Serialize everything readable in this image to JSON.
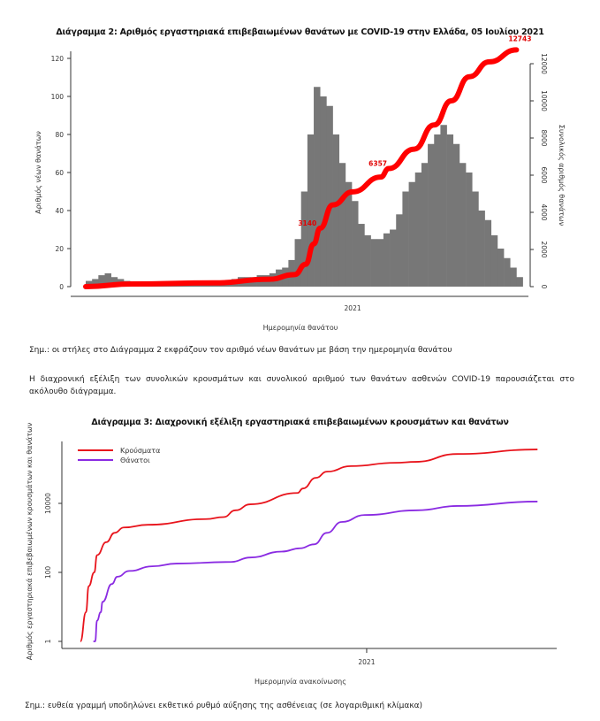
{
  "chart_data": [
    {
      "type": "bar",
      "title": "Διάγραμμα 2: Αριθμός εργαστηριακά επιβεβαιωμένων θανάτων με COVID-19 στην Ελλάδα, 05 Ιουλίου 2021",
      "xlabel": "Ημερομηνία θανάτου",
      "ylabel": "Αριθμός νέων θανάτων",
      "y2label": "Συνολικός αριθμός θανάτων",
      "x_tick_labels": [
        "2021"
      ],
      "x_ticks": [
        "2021-01-01"
      ],
      "y_ticks": [
        0,
        20,
        40,
        60,
        80,
        100,
        120
      ],
      "y2_ticks": [
        0,
        2000,
        4000,
        6000,
        8000,
        10000,
        12000
      ],
      "ylim": [
        0,
        120
      ],
      "y2lim": [
        0,
        12000
      ],
      "grid": false,
      "bar_color": "#777777",
      "line_color": "#ff0000",
      "bars": {
        "resolution": "weekly average of daily new deaths",
        "week_starts_from": "2020-03-12",
        "values": [
          3,
          4,
          6,
          7,
          5,
          4,
          3,
          2,
          2,
          1,
          1,
          1,
          1,
          1,
          1,
          1,
          1,
          1,
          1,
          1,
          2,
          2,
          3,
          4,
          5,
          5,
          5,
          6,
          6,
          7,
          9,
          10,
          14,
          25,
          50,
          80,
          105,
          100,
          95,
          80,
          65,
          55,
          45,
          33,
          27,
          25,
          25,
          28,
          30,
          38,
          50,
          55,
          60,
          65,
          75,
          80,
          85,
          80,
          75,
          65,
          60,
          50,
          40,
          35,
          27,
          20,
          15,
          10,
          5
        ]
      },
      "cumulative": [
        {
          "date": "2020-03-12",
          "value": 0
        },
        {
          "date": "2020-05-01",
          "value": 140
        },
        {
          "date": "2020-08-01",
          "value": 200
        },
        {
          "date": "2020-10-01",
          "value": 400
        },
        {
          "date": "2020-10-29",
          "value": 650
        },
        {
          "date": "2020-11-10",
          "value": 1200
        },
        {
          "date": "2020-11-19",
          "value": 2300
        },
        {
          "date": "2020-11-26",
          "value": 3140
        },
        {
          "date": "2020-12-10",
          "value": 4400
        },
        {
          "date": "2021-01-01",
          "value": 5100
        },
        {
          "date": "2021-02-01",
          "value": 5900
        },
        {
          "date": "2021-02-10",
          "value": 6357
        },
        {
          "date": "2021-03-10",
          "value": 7400
        },
        {
          "date": "2021-04-01",
          "value": 8700
        },
        {
          "date": "2021-04-20",
          "value": 10000
        },
        {
          "date": "2021-05-10",
          "value": 11300
        },
        {
          "date": "2021-06-01",
          "value": 12100
        },
        {
          "date": "2021-07-01",
          "value": 12743
        }
      ],
      "annotations": [
        {
          "date": "2020-11-26",
          "value": 3140,
          "label": "3140"
        },
        {
          "date": "2021-02-10",
          "value": 6357,
          "label": "6357"
        },
        {
          "date": "2021-07-01",
          "value": 12743,
          "label": "12743"
        }
      ]
    },
    {
      "type": "line",
      "title": "Διάγραμμα 3: Διαχρονική εξέλιξη εργαστηριακά επιβεβαιωμένων κρουσμάτων και θανάτων",
      "xlabel": "Ημερομηνία ανακοίνωσης",
      "ylabel": "Αριθμός εργαστηριακά επιβεβαιωμένων κρουσμάτων και θανάτων",
      "y_scale": "log",
      "y_ticks": [
        1,
        100,
        10000
      ],
      "x_ticks": [
        "2021-01-01"
      ],
      "x_tick_labels": [
        "2021"
      ],
      "grid": false,
      "legend_position": "top-left",
      "series": [
        {
          "name": "Κρούσματα",
          "color": "#e8141c",
          "points": [
            [
              "2020-02-26",
              1
            ],
            [
              "2020-03-03",
              7
            ],
            [
              "2020-03-06",
              40
            ],
            [
              "2020-03-12",
              100
            ],
            [
              "2020-03-15",
              316
            ],
            [
              "2020-03-25",
              750
            ],
            [
              "2020-04-03",
              1400
            ],
            [
              "2020-04-13",
              2000
            ],
            [
              "2020-05-09",
              2400
            ],
            [
              "2020-07-11",
              3500
            ],
            [
              "2020-07-30",
              4000
            ],
            [
              "2020-08-12",
              6300
            ],
            [
              "2020-08-28",
              9400
            ],
            [
              "2020-10-18",
              20000
            ],
            [
              "2020-10-24",
              27000
            ],
            [
              "2020-11-07",
              55000
            ],
            [
              "2020-11-19",
              83000
            ],
            [
              "2020-12-15",
              120000
            ],
            [
              "2021-02-01",
              150000
            ],
            [
              "2021-02-23",
              160000
            ],
            [
              "2021-04-09",
              270000
            ],
            [
              "2021-07-05",
              365000
            ]
          ]
        },
        {
          "name": "Θάνατοι",
          "color": "#8a2be2",
          "points": [
            [
              "2020-03-11",
              1
            ],
            [
              "2020-03-13",
              1
            ],
            [
              "2020-03-15",
              4
            ],
            [
              "2020-03-19",
              7
            ],
            [
              "2020-03-21",
              14
            ],
            [
              "2020-03-31",
              46
            ],
            [
              "2020-04-06",
              75
            ],
            [
              "2020-04-19",
              110
            ],
            [
              "2020-05-14",
              150
            ],
            [
              "2020-06-09",
              180
            ],
            [
              "2020-08-07",
              200
            ],
            [
              "2020-08-28",
              270
            ],
            [
              "2020-10-01",
              400
            ],
            [
              "2020-10-21",
              500
            ],
            [
              "2020-11-05",
              650
            ],
            [
              "2020-11-19",
              1400
            ],
            [
              "2020-12-05",
              2900
            ],
            [
              "2020-12-30",
              4600
            ],
            [
              "2021-02-25",
              6300
            ],
            [
              "2021-04-09",
              8400
            ],
            [
              "2021-07-05",
              11300
            ]
          ]
        }
      ]
    }
  ],
  "text": {
    "note2": "Σημ.: οι στήλες στο Διάγραμμα 2 εκφράζουν τον αριθμό νέων θανάτων με βάση την ημερομηνία θανάτου",
    "paragraph": "Η διαχρονική εξέλιξη των συνολικών κρουσμάτων και συνολικού αριθμού των θανάτων ασθενών COVID-19 παρουσιάζεται στο ακόλουθο διάγραμμα.",
    "note3": "Σημ.: ευθεία γραμμή υποδηλώνει εκθετικό ρυθμό αύξησης της ασθένειας (σε λογαριθμική κλίμακα)"
  }
}
